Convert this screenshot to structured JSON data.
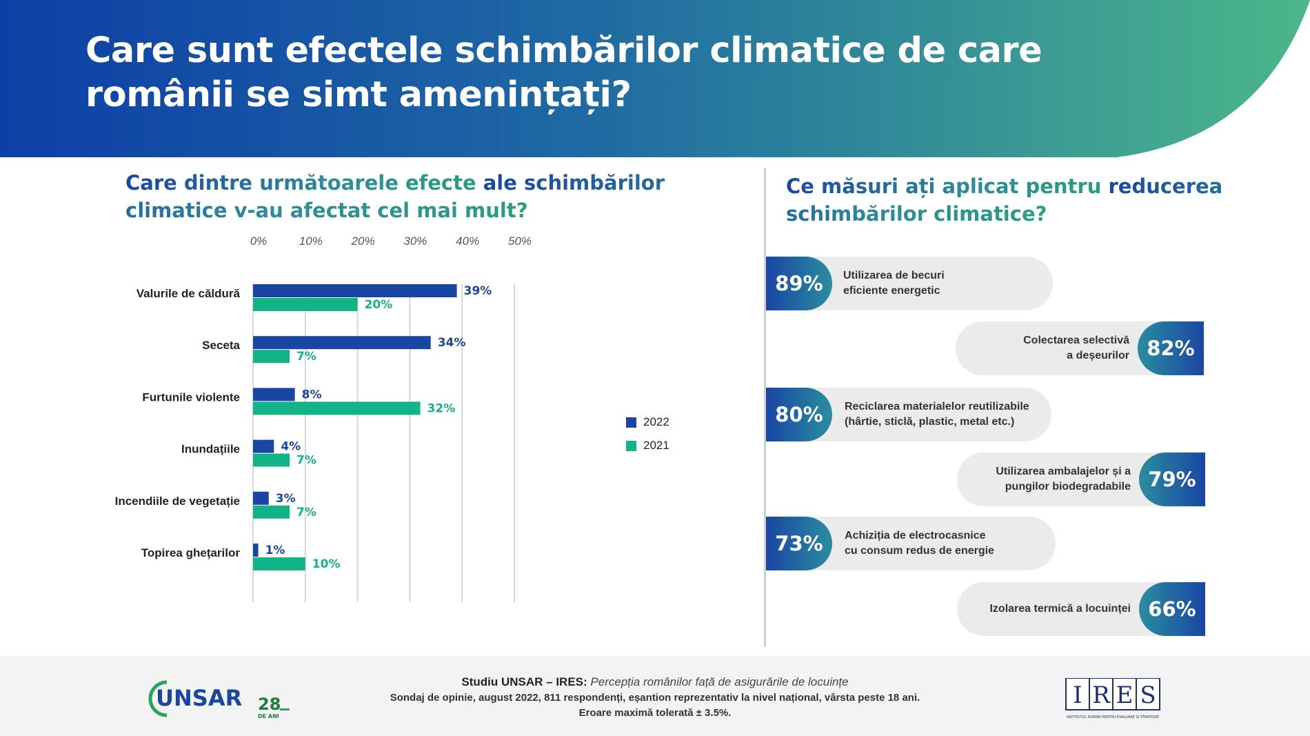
{
  "header": {
    "title": "Care sunt efectele schimbărilor climatice de care românii se simt amenințați?"
  },
  "left_panel": {
    "question_part1": "Care dintre următoarele efecte ",
    "question_part2": "ale schimbărilor climatice v-au afectat cel mai mult?"
  },
  "chart_data": {
    "type": "bar",
    "orientation": "horizontal",
    "categories": [
      "Valurile de căldură",
      "Seceta",
      "Furtunile violente",
      "Inundațiile",
      "Incendiile de vegetație",
      "Topirea ghețarilor"
    ],
    "series": [
      {
        "name": "2022",
        "values": [
          39,
          34,
          8,
          4,
          3,
          1
        ],
        "color": "#1a46a3"
      },
      {
        "name": "2021",
        "values": [
          20,
          7,
          32,
          7,
          7,
          10
        ],
        "color": "#13b388"
      }
    ],
    "x_ticks": [
      "0%",
      "10%",
      "20%",
      "30%",
      "40%",
      "50%"
    ],
    "xlim": [
      0,
      60
    ],
    "grid": true,
    "legend_position": "right",
    "value_suffix": "%"
  },
  "right_panel": {
    "question_part1": "Ce măsuri ați aplicat pentru ",
    "question_part2": "reducerea schimbărilor climatice?",
    "measures": [
      {
        "percent": "89%",
        "label": "Utilizarea de becuri\neficiente energetic",
        "side": "left"
      },
      {
        "percent": "82%",
        "label": "Colectarea selectivă\na deșeurilor",
        "side": "right"
      },
      {
        "percent": "80%",
        "label": "Reciclarea materialelor reutilizabile\n(hârtie, sticlă, plastic, metal etc.)",
        "side": "left"
      },
      {
        "percent": "79%",
        "label": "Utilizarea ambalajelor și a\npungilor biodegradabile",
        "side": "right"
      },
      {
        "percent": "73%",
        "label": "Achiziția de electrocasnice\ncu consum redus de energie",
        "side": "left"
      },
      {
        "percent": "66%",
        "label": "Izolarea termică a locuinței",
        "side": "right"
      }
    ]
  },
  "footer": {
    "study_bold": "Studiu UNSAR – IRES:",
    "study_italic": "Percepția românilor față de asigurările de locuințe",
    "line2": "Sondaj de opinie, august 2022, 811 respondenți, eșantion reprezentativ la nivel național, vârsta peste 18 ani.",
    "line3": "Eroare maximă tolerată ± 3.5%.",
    "logo_left_text": "UNSAR",
    "logo_left_years": "28",
    "logo_left_years_sub": "DE ANI",
    "logo_right_text": "IRES",
    "logo_right_sub": "INSTITUTUL ROMÂN PENTRU EVALUARE ȘI STRATEGIE"
  },
  "colors": {
    "brand_blue": "#1a46a3",
    "brand_green": "#13b388",
    "banner_start": "#0d3fa6",
    "banner_end": "#4bb78a"
  }
}
